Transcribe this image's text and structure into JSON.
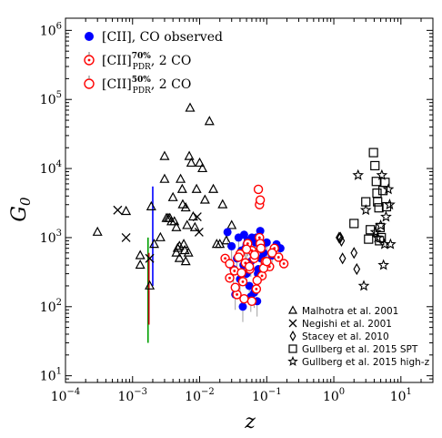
{
  "chart_data": {
    "type": "scatter",
    "title": "",
    "xlabel": "z",
    "ylabel": "G",
    "ylabel_sub": "0",
    "xscale": "log",
    "yscale": "log",
    "xlim": [
      0.0001,
      30
    ],
    "ylim": [
      8,
      1500000
    ],
    "x_ticks": [
      {
        "value": 0.0001,
        "base": "10",
        "exp": "−4"
      },
      {
        "value": 0.001,
        "base": "10",
        "exp": "−3"
      },
      {
        "value": 0.01,
        "base": "10",
        "exp": "−2"
      },
      {
        "value": 0.1,
        "base": "10",
        "exp": "−1"
      },
      {
        "value": 1,
        "base": "10",
        "exp": "0"
      },
      {
        "value": 10,
        "base": "10",
        "exp": "1"
      }
    ],
    "y_ticks": [
      {
        "value": 10,
        "base": "10",
        "exp": "1"
      },
      {
        "value": 100,
        "base": "10",
        "exp": "2"
      },
      {
        "value": 1000,
        "base": "10",
        "exp": "3"
      },
      {
        "value": 10000,
        "base": "10",
        "exp": "4"
      },
      {
        "value": 100000,
        "base": "10",
        "exp": "5"
      },
      {
        "value": 1000000,
        "base": "10",
        "exp": "6"
      }
    ],
    "legend_top": {
      "placement": "top-left",
      "entries": [
        {
          "marker": "filled-circle",
          "color": "#0000ff",
          "text": "[CII], CO observed"
        },
        {
          "marker": "dotted-circle",
          "color": "#ff0000",
          "main": "[CII]",
          "sup": "70%",
          "sub": "PDR",
          "rest": ", 2 CO"
        },
        {
          "marker": "open-circle",
          "color": "#ff0000",
          "main": "[CII]",
          "sup": "50%",
          "sub": "PDR",
          "rest": ", 2 CO"
        }
      ]
    },
    "legend_bottom": {
      "placement": "bottom-right",
      "entries": [
        {
          "marker": "triangle",
          "text": "Malhotra et al. 2001"
        },
        {
          "marker": "x",
          "text": "Negishi et al. 2001"
        },
        {
          "marker": "diamond",
          "text": "Stacey et al. 2010"
        },
        {
          "marker": "square",
          "text": "Gullberg et al. 2015 SPT"
        },
        {
          "marker": "star",
          "text": "Gullberg et al. 2015 high-z"
        }
      ]
    },
    "series": [
      {
        "name": "Malhotra et al. 2001",
        "marker": "triangle",
        "x": [
          0.0003,
          0.0008,
          0.0013,
          0.0019,
          0.0021,
          0.0026,
          0.003,
          0.0032,
          0.0034,
          0.0036,
          0.0038,
          0.004,
          0.0042,
          0.0045,
          0.0047,
          0.005,
          0.005,
          0.0052,
          0.0055,
          0.0056,
          0.0058,
          0.006,
          0.0062,
          0.0065,
          0.0068,
          0.007,
          0.0072,
          0.0075,
          0.008,
          0.0085,
          0.009,
          0.01,
          0.011,
          0.012,
          0.014,
          0.016,
          0.018,
          0.02,
          0.022,
          0.025,
          0.03,
          0.0013,
          0.003,
          0.0045,
          0.0018,
          0.0062
        ],
        "y": [
          1200,
          2400,
          400,
          2800,
          800,
          1000,
          15000,
          1900,
          1900,
          1900,
          1700,
          3800,
          1700,
          600,
          700,
          750,
          500,
          7000,
          5000,
          3000,
          800,
          650,
          450,
          1500,
          600,
          15000,
          75000,
          12000,
          2000,
          1400,
          5000,
          12000,
          10000,
          3500,
          48000,
          5000,
          800,
          800,
          3000,
          900,
          1500,
          550,
          7000,
          1400,
          200,
          2700
        ]
      },
      {
        "name": "Negishi et al. 2001",
        "marker": "x",
        "x": [
          0.0006,
          0.0008,
          0.0018,
          0.0092,
          0.0098
        ],
        "y": [
          2500,
          1000,
          500,
          2000,
          1200
        ]
      },
      {
        "name": "Stacey et al. 2010",
        "marker": "diamond",
        "x": [
          1.2,
          1.25,
          1.3,
          1.35,
          2.0,
          2.2
        ],
        "y": [
          1000,
          1000,
          900,
          500,
          600,
          350
        ]
      },
      {
        "name": "Gullberg et al. 2015 SPT",
        "marker": "square",
        "x": [
          2.0,
          3.0,
          3.5,
          3.9,
          4.1,
          4.3,
          4.4,
          4.5,
          4.7,
          4.9,
          5.1,
          5.4,
          5.8,
          6.1,
          3.3,
          4.8
        ],
        "y": [
          1600,
          3300,
          1300,
          17000,
          11000,
          6500,
          4400,
          3300,
          2700,
          1400,
          1000,
          4800,
          6300,
          2800,
          950,
          900
        ]
      },
      {
        "name": "Gullberg et al. 2015 high-z",
        "marker": "star",
        "x": [
          2.3,
          2.8,
          3.0,
          4.5,
          5.2,
          5.5,
          5.7,
          6.0,
          6.5,
          6.8,
          7.0,
          4.2,
          5.0
        ],
        "y": [
          8000,
          200,
          2500,
          1000,
          8000,
          400,
          800,
          2000,
          5000,
          3000,
          800,
          1200,
          1500
        ]
      },
      {
        "name": "[CII], CO observed",
        "marker": "filled-circle",
        "color": "#0000ff",
        "x": [
          0.026,
          0.03,
          0.032,
          0.034,
          0.036,
          0.038,
          0.04,
          0.042,
          0.044,
          0.046,
          0.048,
          0.05,
          0.052,
          0.055,
          0.058,
          0.06,
          0.062,
          0.065,
          0.068,
          0.07,
          0.072,
          0.075,
          0.08,
          0.085,
          0.09,
          0.1,
          0.12,
          0.14,
          0.16,
          0.045,
          0.05,
          0.058,
          0.074,
          0.082
        ],
        "y": [
          1200,
          750,
          350,
          150,
          500,
          1000,
          250,
          650,
          100,
          1100,
          700,
          300,
          900,
          200,
          450,
          1000,
          600,
          160,
          850,
          1000,
          120,
          350,
          1250,
          750,
          600,
          850,
          550,
          800,
          700,
          400,
          800,
          140,
          300,
          500
        ]
      },
      {
        "name": "[CII]70%PDR, 2 CO",
        "marker": "dotted-circle",
        "color": "#ff0000",
        "x": [
          0.024,
          0.028,
          0.033,
          0.036,
          0.04,
          0.044,
          0.048,
          0.052,
          0.056,
          0.06,
          0.065,
          0.07,
          0.078,
          0.085,
          0.095,
          0.11,
          0.13,
          0.15,
          0.18
        ],
        "y": [
          500,
          260,
          330,
          150,
          580,
          230,
          430,
          820,
          350,
          650,
          500,
          180,
          1000,
          280,
          450,
          380,
          700,
          520,
          420
        ]
      },
      {
        "name": "[CII]50%PDR, 2 CO",
        "marker": "open-circle",
        "color": "#ff0000",
        "x": [
          0.028,
          0.034,
          0.038,
          0.042,
          0.046,
          0.05,
          0.055,
          0.06,
          0.066,
          0.072,
          0.08,
          0.09,
          0.1,
          0.12,
          0.075,
          0.078,
          0.08,
          0.082
        ],
        "y": [
          420,
          190,
          520,
          310,
          130,
          680,
          380,
          120,
          560,
          240,
          820,
          360,
          450,
          600,
          5000,
          3000,
          3500,
          700
        ]
      }
    ],
    "vertical_ranges": [
      {
        "x": 0.0017,
        "y_min": 30,
        "y_max": 1000,
        "color": "#00a000"
      },
      {
        "x": 0.00175,
        "y_min": 55,
        "y_max": 600,
        "color": "#c00000"
      },
      {
        "x": 0.002,
        "y_min": 200,
        "y_max": 5500,
        "color": "#0000ff"
      }
    ]
  }
}
